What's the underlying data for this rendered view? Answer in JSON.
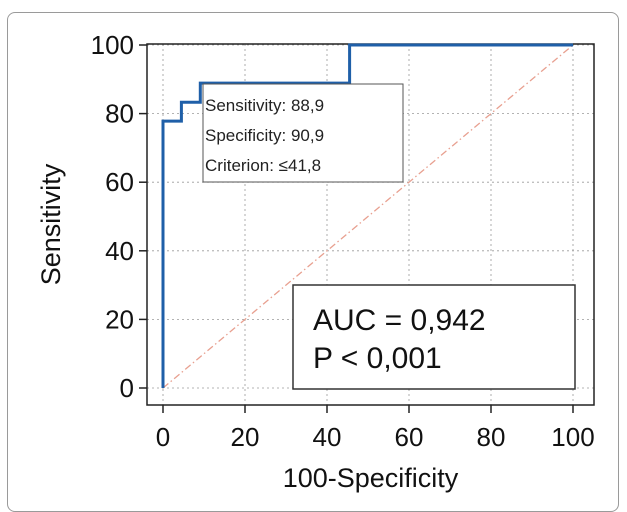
{
  "chart_data": {
    "type": "line",
    "xlabel": "100-Specificity",
    "ylabel": "Sensitivity",
    "xlim": [
      0,
      100
    ],
    "ylim": [
      0,
      100
    ],
    "xticks": [
      "0",
      "20",
      "40",
      "60",
      "80",
      "100"
    ],
    "yticks": [
      "0",
      "20",
      "40",
      "60",
      "80",
      "100"
    ],
    "grid": true,
    "series": [
      {
        "color": "#1f5fa8",
        "x": [
          0,
          0,
          4.5,
          4.5,
          9.1,
          9.1,
          45.5,
          45.5,
          100
        ],
        "y": [
          0,
          77.8,
          77.8,
          83.3,
          83.3,
          88.9,
          88.9,
          100,
          100
        ]
      },
      {
        "color": "#e8a090",
        "style": "dash-dot",
        "x": [
          0,
          100
        ],
        "y": [
          0,
          100
        ]
      }
    ],
    "annotations": {
      "criterion_box": [
        "Sensitivity: 88,9",
        "Specificity: 90,9",
        "Criterion: ≤41,8"
      ],
      "stats_box": [
        "AUC = 0,942",
        "P < 0,001"
      ]
    }
  }
}
